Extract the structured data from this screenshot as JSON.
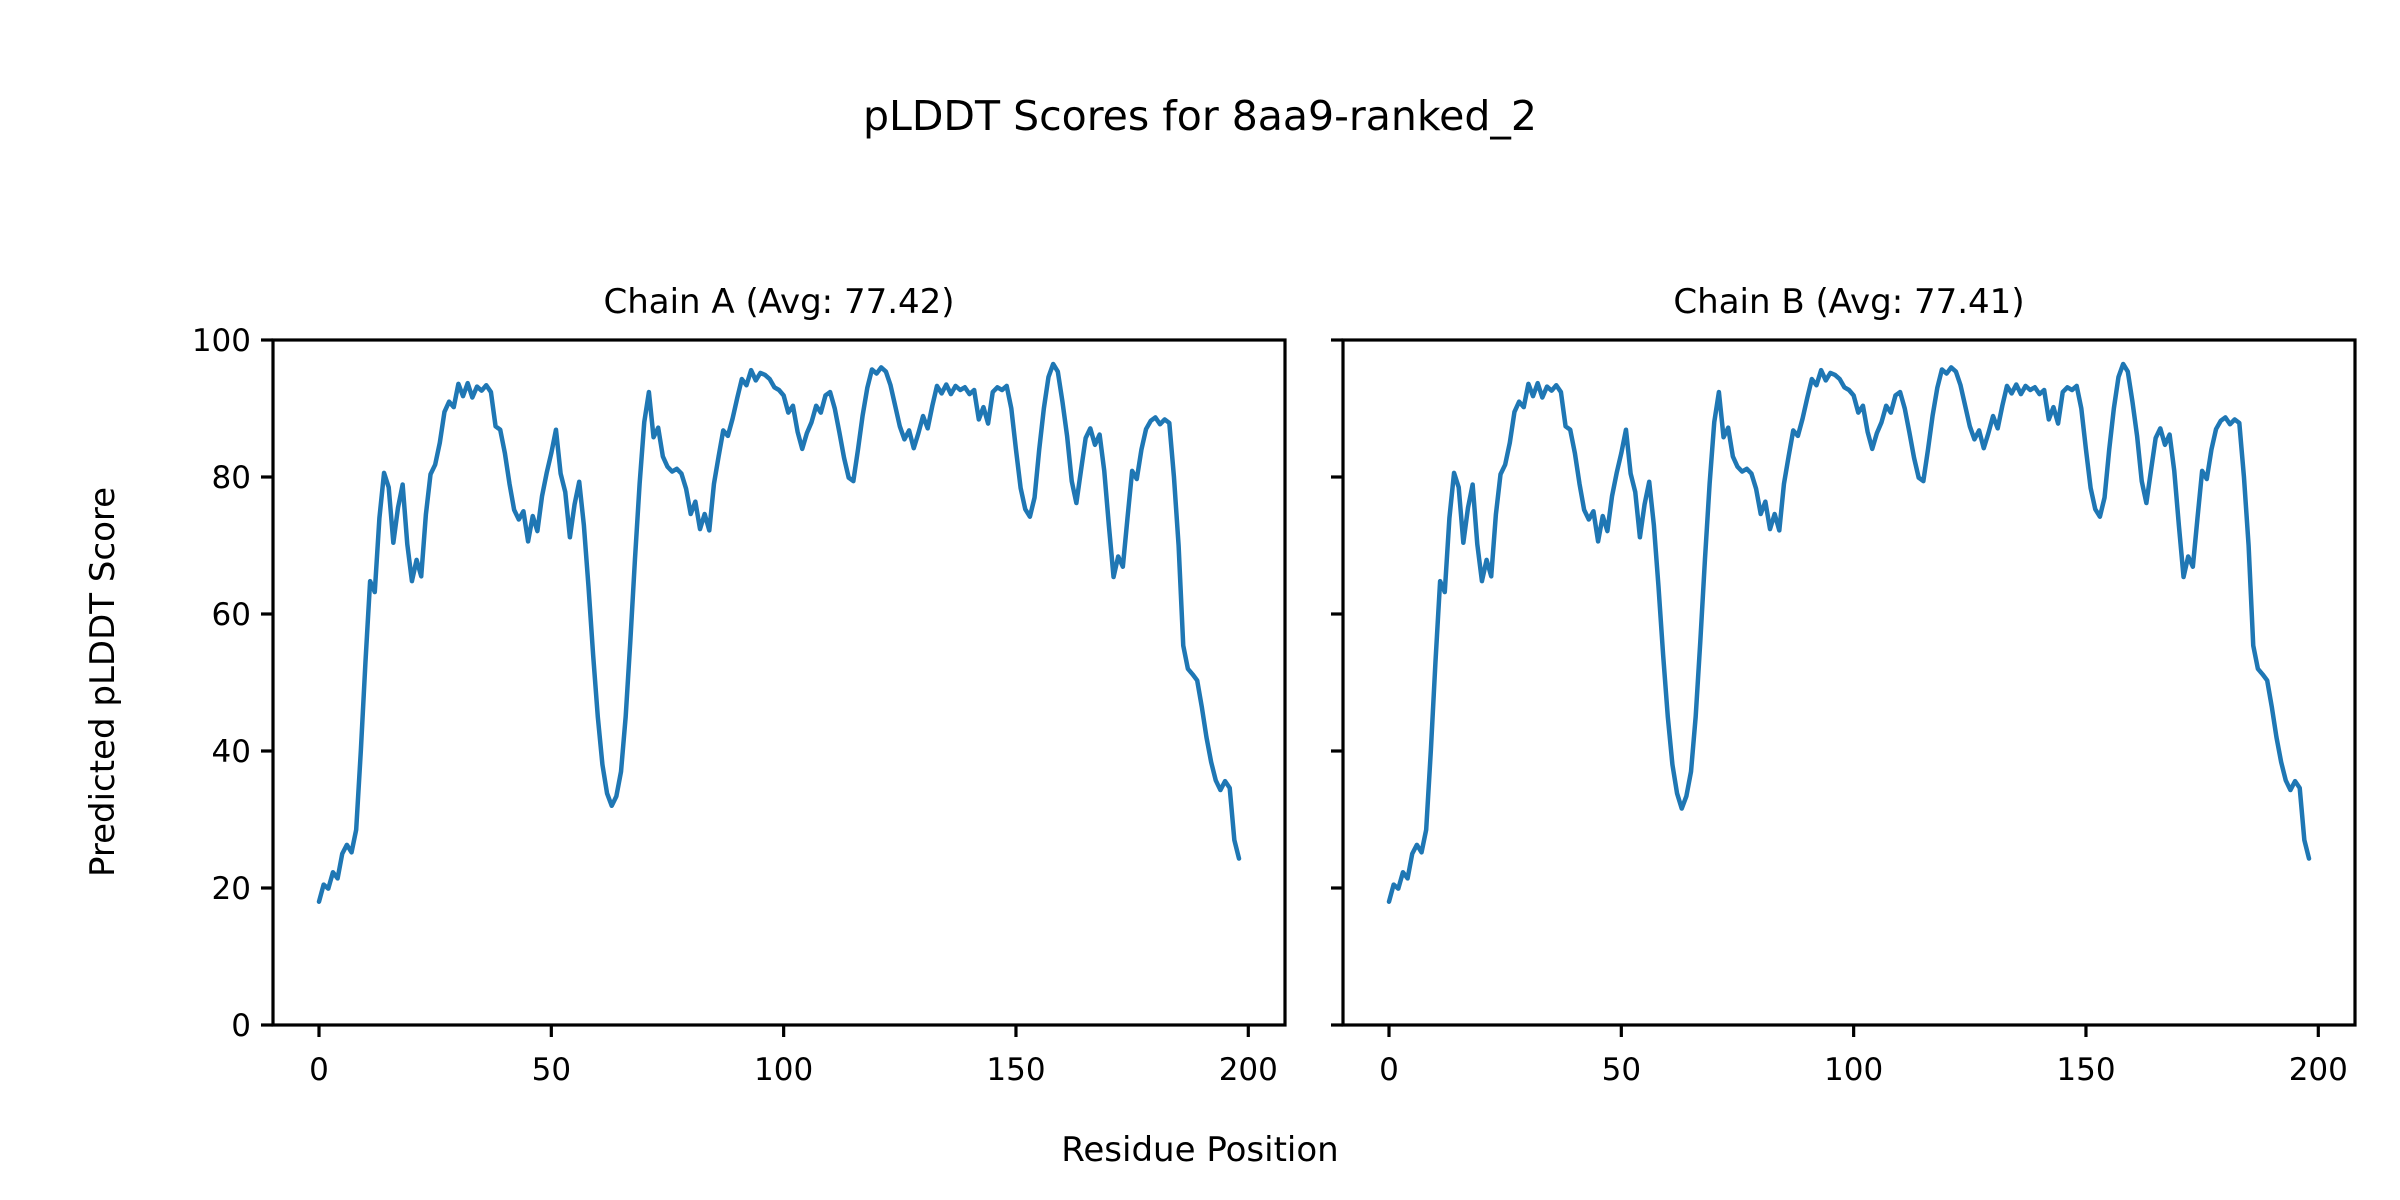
{
  "figure": {
    "suptitle": "pLDDT Scores for 8aa9-ranked_2",
    "xlabel": "Residue Position",
    "ylabel": "Predicted pLDDT Score",
    "background_color": "#ffffff",
    "text_color": "#000000",
    "spine_color": "#000000"
  },
  "chart_data": [
    {
      "type": "line",
      "chain": "A",
      "title": "Chain A (Avg: 77.42)",
      "avg": 77.42,
      "line_color": "#1f77b4",
      "xlabel_shared": "Residue Position",
      "ylabel_shared": "Predicted pLDDT Score",
      "x_ticks": [
        0,
        50,
        100,
        150,
        200
      ],
      "y_ticks": [
        0,
        20,
        40,
        60,
        80,
        100
      ],
      "xlim": [
        -9.9,
        207.9
      ],
      "ylim": [
        0,
        100
      ],
      "y_tick_labels_visible": true,
      "x_start": 0,
      "x_step": 1,
      "values": [
        18.0,
        20.5,
        19.9,
        22.3,
        21.4,
        25.0,
        26.3,
        25.2,
        28.5,
        40.0,
        53.0,
        64.8,
        63.2,
        74.0,
        80.6,
        78.5,
        70.4,
        75.5,
        78.9,
        70.2,
        64.8,
        67.9,
        65.5,
        74.5,
        80.4,
        81.8,
        85.0,
        89.5,
        91.0,
        90.2,
        93.6,
        91.8,
        93.7,
        91.6,
        93.2,
        92.6,
        93.4,
        92.4,
        87.4,
        86.9,
        83.5,
        79.0,
        75.2,
        73.8,
        75.0,
        70.6,
        74.3,
        72.1,
        77.2,
        80.6,
        83.5,
        86.9,
        80.5,
        77.8,
        71.2,
        76.0,
        79.3,
        73.0,
        64.0,
        54.0,
        45.0,
        38.0,
        33.8,
        32.0,
        33.4,
        37.0,
        45.0,
        56.0,
        68.0,
        79.0,
        88.0,
        92.4,
        85.8,
        87.2,
        83.0,
        81.5,
        80.8,
        81.2,
        80.5,
        78.3,
        74.6,
        76.4,
        72.4,
        74.6,
        72.2,
        79.0,
        83.0,
        86.8,
        86.0,
        88.5,
        91.5,
        94.3,
        93.4,
        95.6,
        94.1,
        95.2,
        94.9,
        94.3,
        93.1,
        92.7,
        91.9,
        89.4,
        90.4,
        86.6,
        84.1,
        86.4,
        88.0,
        90.4,
        89.4,
        91.9,
        92.4,
        90.0,
        86.5,
        82.8,
        79.9,
        79.4,
        84.0,
        89.0,
        93.0,
        95.7,
        95.1,
        96.0,
        95.4,
        93.4,
        90.4,
        87.4,
        85.5,
        86.8,
        84.2,
        86.4,
        88.9,
        87.1,
        90.4,
        93.3,
        92.2,
        93.5,
        92.1,
        93.3,
        92.7,
        93.1,
        92.1,
        92.7,
        88.4,
        90.2,
        87.8,
        92.4,
        93.1,
        92.7,
        93.3,
        90.0,
        84.0,
        78.4,
        75.3,
        74.2,
        77.0,
        84.0,
        90.0,
        94.6,
        96.5,
        95.4,
        91.0,
        86.0,
        79.4,
        76.2,
        81.0,
        85.7,
        87.1,
        84.7,
        86.2,
        80.9,
        72.9,
        65.4,
        68.4,
        66.9,
        74.0,
        80.9,
        79.7,
        84.0,
        87.0,
        88.2,
        88.7,
        87.7,
        88.4,
        87.9,
        80.0,
        70.0,
        55.4,
        52.0,
        51.2,
        50.3,
        46.4,
        42.0,
        38.4,
        35.7,
        34.3,
        35.6,
        34.6,
        27.0,
        24.3
      ]
    },
    {
      "type": "line",
      "chain": "B",
      "title": "Chain B (Avg: 77.41)",
      "avg": 77.41,
      "line_color": "#1f77b4",
      "xlabel_shared": "Residue Position",
      "ylabel_shared": "Predicted pLDDT Score",
      "x_ticks": [
        0,
        50,
        100,
        150,
        200
      ],
      "y_ticks": [
        0,
        20,
        40,
        60,
        80,
        100
      ],
      "xlim": [
        -9.9,
        207.9
      ],
      "ylim": [
        0,
        100
      ],
      "y_tick_labels_visible": false,
      "x_start": 0,
      "x_step": 1,
      "values": [
        18.0,
        20.5,
        19.9,
        22.3,
        21.4,
        25.0,
        26.3,
        25.2,
        28.5,
        40.0,
        53.0,
        64.8,
        63.2,
        74.0,
        80.6,
        78.5,
        70.4,
        75.5,
        78.9,
        70.2,
        64.8,
        67.9,
        65.5,
        74.5,
        80.4,
        81.8,
        85.0,
        89.5,
        91.0,
        90.2,
        93.6,
        91.8,
        93.7,
        91.6,
        93.2,
        92.6,
        93.4,
        92.4,
        87.4,
        86.9,
        83.5,
        79.0,
        75.2,
        73.8,
        75.0,
        70.6,
        74.3,
        72.1,
        77.2,
        80.6,
        83.5,
        86.9,
        80.5,
        77.8,
        71.2,
        76.0,
        79.3,
        73.0,
        64.0,
        54.0,
        45.0,
        38.0,
        33.8,
        31.6,
        33.4,
        37.0,
        45.0,
        56.0,
        68.0,
        79.0,
        88.0,
        92.4,
        85.8,
        87.2,
        83.0,
        81.5,
        80.8,
        81.2,
        80.5,
        78.3,
        74.6,
        76.4,
        72.4,
        74.6,
        72.2,
        79.0,
        83.0,
        86.8,
        86.0,
        88.5,
        91.5,
        94.3,
        93.4,
        95.6,
        94.1,
        95.2,
        94.9,
        94.3,
        93.1,
        92.7,
        91.9,
        89.4,
        90.4,
        86.6,
        84.1,
        86.4,
        88.0,
        90.4,
        89.4,
        91.9,
        92.4,
        90.0,
        86.5,
        82.8,
        79.9,
        79.4,
        84.0,
        89.0,
        93.0,
        95.7,
        95.1,
        96.0,
        95.4,
        93.4,
        90.4,
        87.4,
        85.5,
        86.8,
        84.2,
        86.4,
        88.9,
        87.1,
        90.4,
        93.3,
        92.2,
        93.5,
        92.1,
        93.3,
        92.7,
        93.1,
        92.1,
        92.7,
        88.4,
        90.2,
        87.8,
        92.4,
        93.1,
        92.7,
        93.3,
        90.0,
        84.0,
        78.4,
        75.3,
        74.2,
        77.0,
        84.0,
        90.0,
        94.6,
        96.5,
        95.4,
        91.0,
        86.0,
        79.4,
        76.2,
        81.0,
        85.7,
        87.1,
        84.7,
        86.2,
        80.9,
        72.9,
        65.4,
        68.4,
        66.9,
        74.0,
        80.9,
        79.7,
        84.0,
        87.0,
        88.2,
        88.7,
        87.7,
        88.4,
        87.9,
        80.0,
        70.0,
        55.4,
        52.0,
        51.2,
        50.3,
        46.4,
        42.0,
        38.4,
        35.7,
        34.3,
        35.6,
        34.6,
        27.0,
        24.3
      ]
    }
  ],
  "layout": {
    "axes_width": 1012,
    "axes_height": 685,
    "tick_length": 12,
    "spine_width": 3.2,
    "line_width": 4.5,
    "tick_font_size": 31
  }
}
